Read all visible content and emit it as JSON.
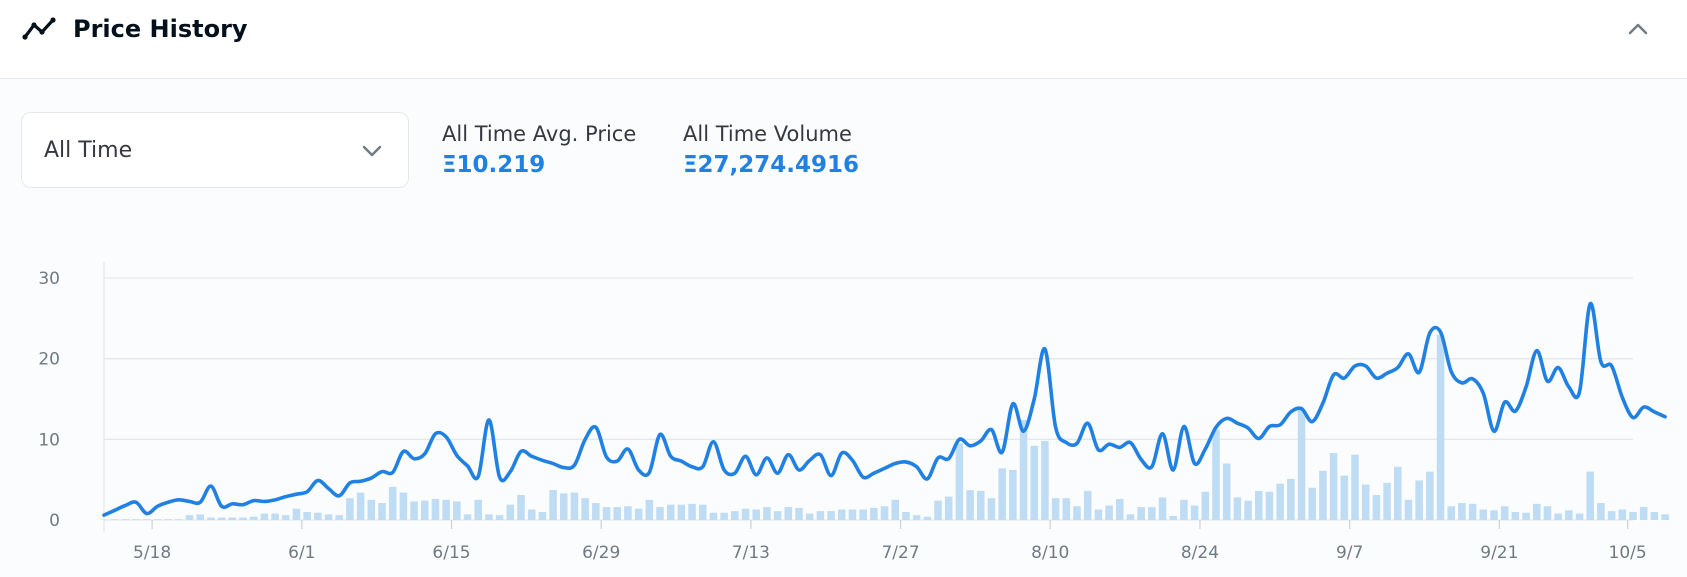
{
  "header": {
    "title": "Price History",
    "icon": "trend-line-icon",
    "collapse_icon": "chevron-up-icon"
  },
  "filter": {
    "selected": "All Time",
    "icon": "chevron-down-icon"
  },
  "stats": [
    {
      "label": "All Time Avg. Price",
      "value": "Ξ10.219"
    },
    {
      "label": "All Time Volume",
      "value": "Ξ27,274.4916"
    }
  ],
  "colors": {
    "accent": "#2081e2",
    "line": "#2081e2",
    "bar": "#bfdcf5",
    "grid": "#e5e8eb"
  },
  "chart_data": {
    "type": "bar",
    "ylim": [
      0,
      30
    ],
    "y_ticks": [
      0,
      10,
      20,
      30
    ],
    "x_tick_labels": [
      "5/18",
      "6/1",
      "6/15",
      "6/29",
      "7/13",
      "7/27",
      "8/10",
      "8/24",
      "9/7",
      "9/21",
      "10/5"
    ],
    "x_tick_positions": [
      4.5,
      18.5,
      32.5,
      46.5,
      60.5,
      74.5,
      88.5,
      102.5,
      116.5,
      130.5,
      142.5
    ],
    "x_domain": [
      0,
      143
    ],
    "grid": true,
    "legend": "none",
    "series": [
      {
        "type": "line",
        "values": [
          0.6,
          1.2,
          1.8,
          2.2,
          0.8,
          1.7,
          2.2,
          2.5,
          2.3,
          2.2,
          4.2,
          1.7,
          2.0,
          1.9,
          2.4,
          2.3,
          2.5,
          2.9,
          3.2,
          3.5,
          4.9,
          3.9,
          3.0,
          4.6,
          4.8,
          5.2,
          6.0,
          5.9,
          8.5,
          7.6,
          8.2,
          10.7,
          10.3,
          8.0,
          6.7,
          5.4,
          12.4,
          5.3,
          6.0,
          8.5,
          7.9,
          7.4,
          7.0,
          6.5,
          6.8,
          10.0,
          11.5,
          7.8,
          7.3,
          8.8,
          6.2,
          5.9,
          10.6,
          7.9,
          7.3,
          6.6,
          6.6,
          9.7,
          6.2,
          5.8,
          7.9,
          5.6,
          7.7,
          5.8,
          8.1,
          6.2,
          7.4,
          8.1,
          5.5,
          8.3,
          7.4,
          5.3,
          5.8,
          6.4,
          7.0,
          7.2,
          6.6,
          5.1,
          7.7,
          7.6,
          10.0,
          9.2,
          9.8,
          11.2,
          8.4,
          14.4,
          11.0,
          15.0,
          21.2,
          11.5,
          9.6,
          9.5,
          12.0,
          8.7,
          9.4,
          9.0,
          9.6,
          7.5,
          6.6,
          10.7,
          6.2,
          11.6,
          7.0,
          8.8,
          11.5,
          12.6,
          12.0,
          11.4,
          10.1,
          11.6,
          11.8,
          13.4,
          13.8,
          12.2,
          14.5,
          18.0,
          17.6,
          19.1,
          19.1,
          17.6,
          18.2,
          18.9,
          20.6,
          18.3,
          23.2,
          23.3,
          18.4,
          17.0,
          17.5,
          15.7,
          11.0,
          14.6,
          13.5,
          16.5,
          21.0,
          17.2,
          18.9,
          16.5,
          15.9,
          26.8,
          19.6,
          19.1,
          15.2,
          12.7,
          14.0,
          13.4,
          12.8
        ]
      },
      {
        "type": "bar",
        "values": [
          0.05,
          0.1,
          0.1,
          0.1,
          0.1,
          0.1,
          0.1,
          0.1,
          0.6,
          0.7,
          0.3,
          0.3,
          0.3,
          0.3,
          0.4,
          0.8,
          0.8,
          0.6,
          1.4,
          1.0,
          0.9,
          0.7,
          0.6,
          2.7,
          3.4,
          2.5,
          2.1,
          4.1,
          3.4,
          2.3,
          2.4,
          2.6,
          2.5,
          2.3,
          0.7,
          2.5,
          0.7,
          0.6,
          1.9,
          3.1,
          1.3,
          1.0,
          3.7,
          3.3,
          3.4,
          2.7,
          2.1,
          1.6,
          1.6,
          1.7,
          1.4,
          2.5,
          1.6,
          1.9,
          1.9,
          2.0,
          1.9,
          0.9,
          0.9,
          1.1,
          1.4,
          1.3,
          1.6,
          1.1,
          1.6,
          1.5,
          0.8,
          1.1,
          1.1,
          1.3,
          1.3,
          1.3,
          1.5,
          1.7,
          2.5,
          1.0,
          0.6,
          0.4,
          2.4,
          2.9,
          9.5,
          3.7,
          3.6,
          2.7,
          6.4,
          6.2,
          12.4,
          9.2,
          9.8,
          2.7,
          2.7,
          1.7,
          3.6,
          1.3,
          1.8,
          2.6,
          0.7,
          1.6,
          1.6,
          2.8,
          0.5,
          2.5,
          1.8,
          3.5,
          11.2,
          7.0,
          2.8,
          2.4,
          3.6,
          3.5,
          4.5,
          5.1,
          13.7,
          4.0,
          6.1,
          8.3,
          5.5,
          8.1,
          4.4,
          3.1,
          4.6,
          6.6,
          2.5,
          4.9,
          6.0,
          23.0,
          1.7,
          2.1,
          2.0,
          1.3,
          1.2,
          1.7,
          1.0,
          0.9,
          2.0,
          1.7,
          0.8,
          1.2,
          0.8,
          6.0,
          2.1,
          1.1,
          1.3,
          1.0,
          1.6,
          1.0,
          0.7
        ]
      }
    ]
  }
}
